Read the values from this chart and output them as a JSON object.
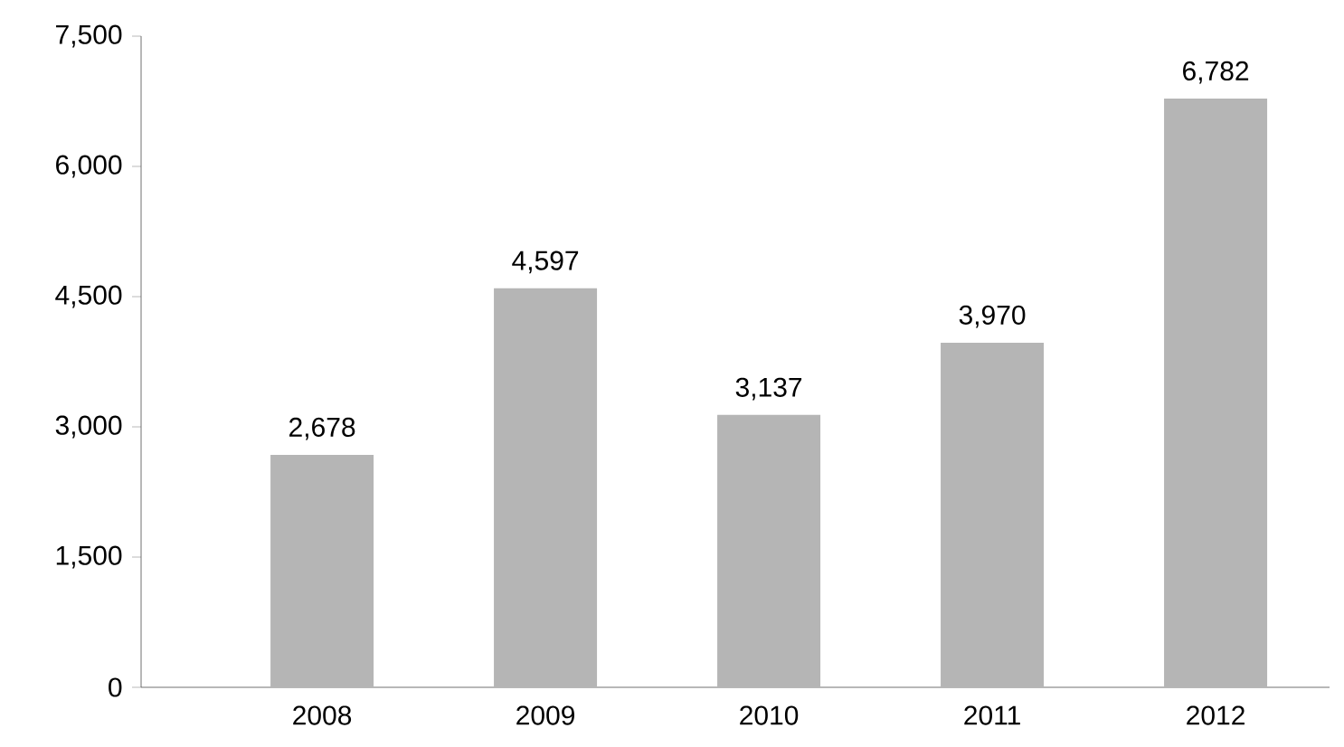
{
  "chart_data": {
    "type": "bar",
    "categories": [
      "2008",
      "2009",
      "2010",
      "2011",
      "2012"
    ],
    "values": [
      2678,
      4597,
      3137,
      3970,
      6782
    ],
    "value_labels": [
      "2,678",
      "4,597",
      "3,137",
      "3,970",
      "6,782"
    ],
    "color": "#b5b5b5",
    "ylim": [
      0,
      7500
    ],
    "yticks": [
      {
        "value": 0,
        "label": "0"
      },
      {
        "value": 1500,
        "label": "1,500"
      },
      {
        "value": 3000,
        "label": "3,000"
      },
      {
        "value": 4500,
        "label": "4,500"
      },
      {
        "value": 6000,
        "label": "6,000"
      },
      {
        "value": 7500,
        "label": "7,500"
      }
    ],
    "grid": false
  }
}
